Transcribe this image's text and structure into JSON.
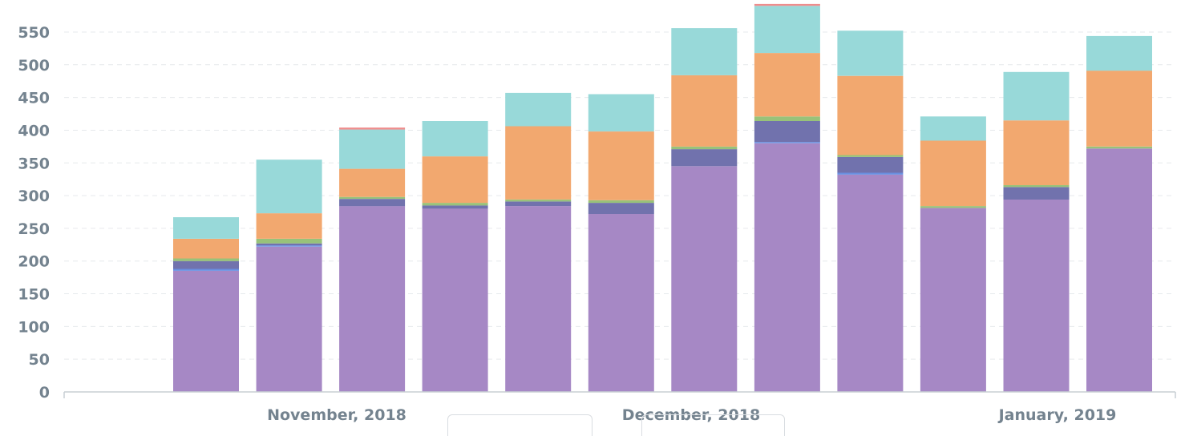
{
  "chart_data": {
    "type": "bar",
    "stacked": true,
    "x_tick_labels": [
      "November, 2018",
      "December, 2018",
      "January, 2019"
    ],
    "y_ticks": [
      0,
      50,
      100,
      150,
      200,
      250,
      300,
      350,
      400,
      450,
      500,
      550
    ],
    "ylim": [
      0,
      590
    ],
    "grid": true,
    "grid_style": "dashed horizontal",
    "legend": "none",
    "categories": [
      "",
      "",
      "",
      "",
      "",
      "",
      "",
      "",
      "",
      "",
      "",
      ""
    ],
    "series": [
      {
        "color": "#a688c5",
        "values": [
          185,
          222,
          284,
          280,
          284,
          272,
          345,
          380,
          332,
          281,
          294,
          372
        ]
      },
      {
        "color": "#6a8fe0",
        "values": [
          3,
          2,
          0,
          0,
          0,
          0,
          0,
          2,
          3,
          0,
          0,
          0
        ]
      },
      {
        "color": "#7172ad",
        "values": [
          12,
          3,
          11,
          5,
          7,
          17,
          26,
          32,
          24,
          0,
          19,
          0
        ]
      },
      {
        "color": "#98c27a",
        "values": [
          4,
          7,
          3,
          4,
          3,
          4,
          4,
          7,
          3,
          3,
          3,
          3
        ]
      },
      {
        "color": "#f2a86f",
        "values": [
          30,
          39,
          43,
          71,
          112,
          105,
          109,
          97,
          121,
          100,
          99,
          116
        ]
      },
      {
        "color": "#98d9d9",
        "values": [
          33,
          82,
          60,
          54,
          51,
          57,
          72,
          72,
          69,
          37,
          74,
          53
        ]
      },
      {
        "color": "#ef8c8c",
        "values": [
          0,
          0,
          3,
          0,
          0,
          0,
          0,
          3,
          0,
          0,
          0,
          0
        ]
      }
    ]
  }
}
